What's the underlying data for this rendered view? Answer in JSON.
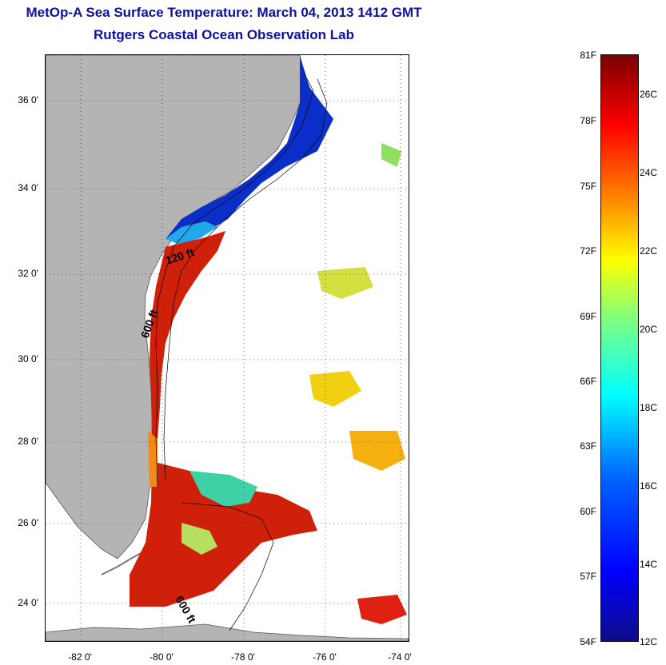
{
  "header": {
    "title": "MetOp-A Sea Surface Temperature:  March 04, 2013 1412 GMT",
    "subtitle": "Rutgers Coastal Ocean Observation Lab"
  },
  "map": {
    "lat_labels": [
      "36 0'",
      "34 0'",
      "32 0'",
      "30 0'",
      "28 0'",
      "26 0'",
      "24 0'"
    ],
    "lon_labels": [
      "-82 0'",
      "-80 0'",
      "-78 0'",
      "-76 0'",
      "-74 0'"
    ],
    "contour_labels": [
      "120 ft",
      "600 ft",
      "600 ft"
    ],
    "colors": {
      "land": "#b4b4b4",
      "ocean": "#ffffff",
      "title": "#10109a"
    }
  },
  "colorbar": {
    "fahrenheit_labels": [
      "81F",
      "78F",
      "75F",
      "72F",
      "69F",
      "66F",
      "63F",
      "60F",
      "57F",
      "54F"
    ],
    "celsius_labels": [
      "26C",
      "24C",
      "22C",
      "20C",
      "18C",
      "16C",
      "14C",
      "12C"
    ]
  }
}
